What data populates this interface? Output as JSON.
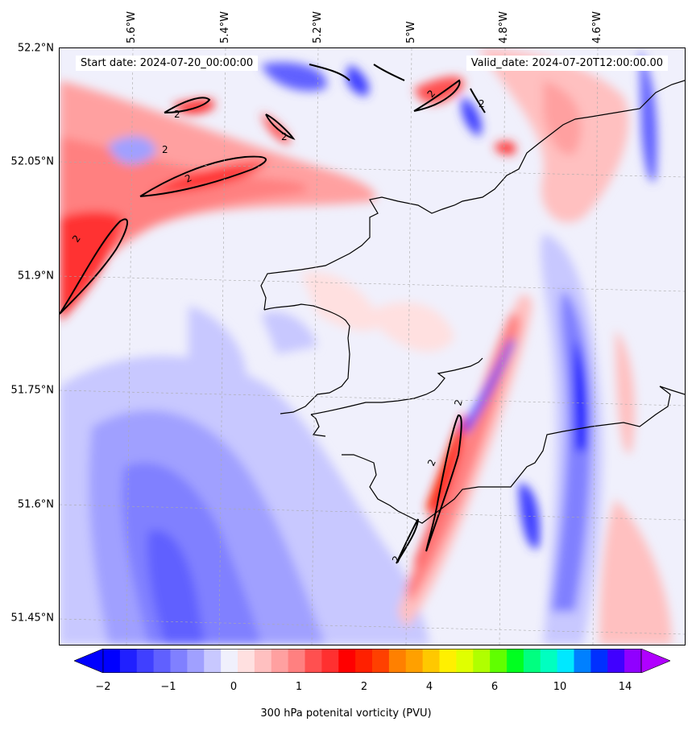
{
  "header": {
    "start_date": "Start date: 2024-07-20_00:00:00",
    "valid_date": "Valid_date: 2024-07-20T12:00:00.00"
  },
  "axes": {
    "lat_labels": [
      "52.2°N",
      "52.05°N",
      "51.9°N",
      "51.75°N",
      "51.6°N",
      "51.45°N"
    ],
    "lon_labels": [
      "5.6°W",
      "5.4°W",
      "5.2°W",
      "5°W",
      "4.8°W",
      "4.6°W"
    ]
  },
  "map": {
    "field": "300 hPa potential vorticity",
    "contour_label": "2",
    "region_extent": {
      "lon_min": -5.75,
      "lon_max": -4.45,
      "lat_min": 51.42,
      "lat_max": 52.2
    }
  },
  "colorbar": {
    "title": "300 hPa potenital vorticity (PVU)",
    "tick_labels": [
      "−2",
      "−1",
      "0",
      "1",
      "2",
      "4",
      "6",
      "10",
      "14"
    ],
    "extend": "both",
    "colors": [
      "#0000ff",
      "#2020ff",
      "#4040ff",
      "#6060ff",
      "#8080ff",
      "#a0a0ff",
      "#c8c8ff",
      "#f0f0fc",
      "#ffe0e0",
      "#ffc0c0",
      "#ffa0a0",
      "#ff8080",
      "#ff5050",
      "#ff3030",
      "#ff0000",
      "#ff2000",
      "#ff4000",
      "#ff8000",
      "#ffa000",
      "#ffc800",
      "#fff000",
      "#e0ff00",
      "#b0ff00",
      "#60ff00",
      "#00ff20",
      "#00ff80",
      "#00ffc0",
      "#00e8ff",
      "#0080ff",
      "#0030ff",
      "#4000ff",
      "#9000ff"
    ],
    "under_color": "#0000ff",
    "over_color": "#b000ff"
  }
}
